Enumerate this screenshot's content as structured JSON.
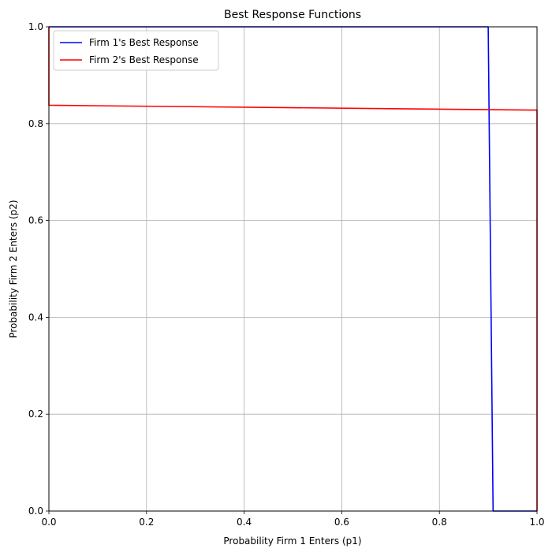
{
  "chart_data": {
    "type": "line",
    "title": "Best Response Functions",
    "xlabel": "Probability Firm 1 Enters (p1)",
    "ylabel": "Probability Firm 2 Enters (p2)",
    "xlim": [
      0,
      1
    ],
    "ylim": [
      0,
      1
    ],
    "x_ticks": [
      0.0,
      0.2,
      0.4,
      0.6,
      0.8,
      1.0
    ],
    "y_ticks": [
      0.0,
      0.2,
      0.4,
      0.6,
      0.8,
      1.0
    ],
    "x_tick_labels": [
      "0.0",
      "0.2",
      "0.4",
      "0.6",
      "0.8",
      "1.0"
    ],
    "y_tick_labels": [
      "0.0",
      "0.2",
      "0.4",
      "0.6",
      "0.8",
      "1.0"
    ],
    "grid": true,
    "legend_position": "upper-left",
    "series": [
      {
        "name": "Firm 1's Best Response",
        "color": "#0000ff",
        "points": [
          [
            0.0,
            1.0
          ],
          [
            0.9,
            1.0
          ],
          [
            0.91,
            0.0
          ],
          [
            1.0,
            0.0
          ]
        ]
      },
      {
        "name": "Firm 2's Best Response",
        "color": "#ff0000",
        "points": [
          [
            0.0,
            1.0
          ],
          [
            0.0,
            0.838
          ],
          [
            0.5,
            0.833
          ],
          [
            0.99,
            0.828
          ],
          [
            1.0,
            0.828
          ],
          [
            1.0,
            0.0
          ]
        ]
      }
    ]
  }
}
